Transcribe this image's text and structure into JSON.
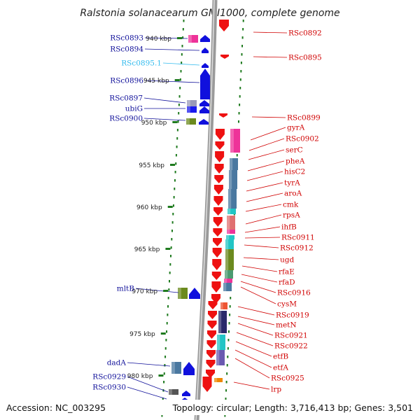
{
  "title": "Ralstonia solanacearum GMI1000, complete genome",
  "footer": {
    "accession": "Accession: NC_003295",
    "topology": "Topology: circular; Length: 3,716,413 bp; Genes: 3,501"
  },
  "colors": {
    "forward_gene": "#1010dd",
    "reverse_gene": "#ee1111",
    "rna_gene": "#33bbee",
    "label_left": "#10109a",
    "label_right": "#d00000",
    "backbone": "#a0a0a0",
    "ruler_ticks": "#1e7a1e"
  },
  "scale_labels": [
    "940 kbp",
    "945 kbp",
    "950 kbp",
    "955 kbp",
    "960 kbp",
    "965 kbp",
    "970 kbp",
    "975 kbp",
    "980 kbp"
  ],
  "left_genes": [
    {
      "label": "RSc0893",
      "type": "cds"
    },
    {
      "label": "RSc0894",
      "type": "cds"
    },
    {
      "label": "RSc0895.1",
      "type": "rna"
    },
    {
      "label": "RSc0896",
      "type": "cds"
    },
    {
      "label": "RSc0897",
      "type": "cds"
    },
    {
      "label": "ubiG",
      "type": "cds"
    },
    {
      "label": "RSc0900",
      "type": "cds"
    },
    {
      "label": "mltB",
      "type": "cds"
    },
    {
      "label": "dadA",
      "type": "cds"
    },
    {
      "label": "RSc0929",
      "type": "cds"
    },
    {
      "label": "RSc0930",
      "type": "cds"
    }
  ],
  "right_genes": [
    {
      "label": "RSc0892"
    },
    {
      "label": "RSc0895"
    },
    {
      "label": "RSc0899"
    },
    {
      "label": "gyrA"
    },
    {
      "label": "RSc0902"
    },
    {
      "label": "serC"
    },
    {
      "label": "pheA"
    },
    {
      "label": "hisC2"
    },
    {
      "label": "tyrA"
    },
    {
      "label": "aroA"
    },
    {
      "label": "cmk"
    },
    {
      "label": "rpsA"
    },
    {
      "label": "ihfB"
    },
    {
      "label": "RSc0911"
    },
    {
      "label": "RSc0912"
    },
    {
      "label": "ugd"
    },
    {
      "label": "rfaE"
    },
    {
      "label": "rfaD"
    },
    {
      "label": "RSc0916"
    },
    {
      "label": "cysM"
    },
    {
      "label": "RSc0919"
    },
    {
      "label": "metN"
    },
    {
      "label": "RSc0921"
    },
    {
      "label": "RSc0922"
    },
    {
      "label": "etfB"
    },
    {
      "label": "etfA"
    },
    {
      "label": "RSc0925"
    },
    {
      "label": "lrp"
    }
  ]
}
